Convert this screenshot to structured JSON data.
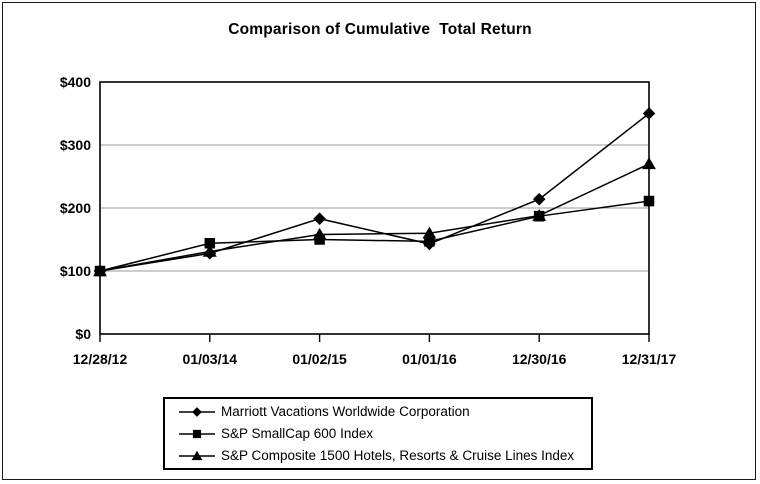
{
  "figure": {
    "background": "#ffffff",
    "border_color": "#1a1a1a"
  },
  "chart_data": {
    "type": "line",
    "title": "Comparison of Cumulative  Total Return",
    "categories": [
      "12/28/12",
      "01/03/14",
      "01/02/15",
      "01/01/16",
      "12/30/16",
      "12/31/17"
    ],
    "series": [
      {
        "name": "Marriott Vacations Worldwide Corporation",
        "marker": "diamond",
        "color": "#000000",
        "values": [
          100,
          128,
          183,
          143,
          214,
          350
        ]
      },
      {
        "name": "S&P SmallCap 600 Index",
        "marker": "square",
        "color": "#000000",
        "values": [
          100,
          144,
          150,
          147,
          187,
          211
        ]
      },
      {
        "name": "S&P Composite 1500 Hotels, Resorts & Cruise Lines Index",
        "marker": "triangle",
        "color": "#000000",
        "values": [
          100,
          131,
          158,
          160,
          188,
          270
        ]
      }
    ],
    "xlabel": "",
    "ylabel": "",
    "ylim": [
      0,
      400
    ],
    "y_ticks": [
      {
        "value": 0,
        "label": "$0"
      },
      {
        "value": 100,
        "label": "$100"
      },
      {
        "value": 200,
        "label": "$200"
      },
      {
        "value": 300,
        "label": "$300"
      },
      {
        "value": 400,
        "label": "$400"
      }
    ],
    "grid": "horizontal-only",
    "gridline_color": "#999999",
    "axis_color": "#000000",
    "legend_position": "bottom-center",
    "plot_draw_order": [
      0,
      2,
      1
    ]
  }
}
